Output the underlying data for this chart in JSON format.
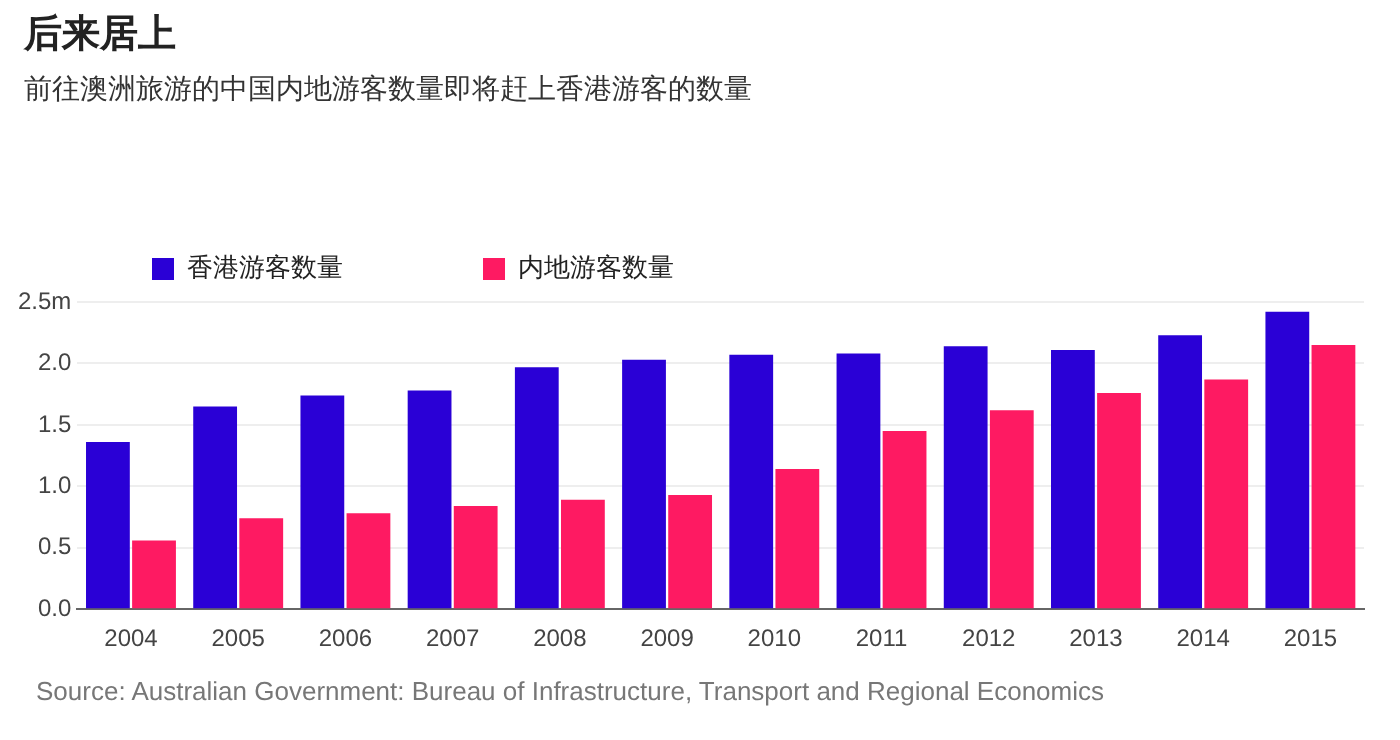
{
  "chart_data": {
    "type": "bar",
    "title": "后来居上",
    "subtitle": "前往澳洲旅游的中国内地游客数量即将赶上香港游客的数量",
    "categories": [
      "2004",
      "2005",
      "2006",
      "2007",
      "2008",
      "2009",
      "2010",
      "2011",
      "2012",
      "2013",
      "2014",
      "2015"
    ],
    "series": [
      {
        "name": "香港游客数量",
        "color": "#2a00d6",
        "values": [
          1.36,
          1.65,
          1.74,
          1.78,
          1.97,
          2.03,
          2.07,
          2.08,
          2.14,
          2.11,
          2.23,
          2.42
        ]
      },
      {
        "name": "内地游客数量",
        "color": "#fe1a62",
        "values": [
          0.56,
          0.74,
          0.78,
          0.84,
          0.89,
          0.93,
          1.14,
          1.45,
          1.62,
          1.76,
          1.87,
          2.15
        ]
      }
    ],
    "ylim": [
      0,
      2.5
    ],
    "yticks": [
      {
        "value": 0,
        "label": "0.0"
      },
      {
        "value": 0.5,
        "label": "0.5"
      },
      {
        "value": 1,
        "label": "1.0"
      },
      {
        "value": 1.5,
        "label": "1.5"
      },
      {
        "value": 2,
        "label": "2.0"
      },
      {
        "value": 2.5,
        "label": "2.5m"
      }
    ],
    "grid": "y",
    "legend": "top left",
    "annotations": [
      "Source: Australian Government: Bureau of Infrastructure, Transport and Regional Economics"
    ]
  }
}
